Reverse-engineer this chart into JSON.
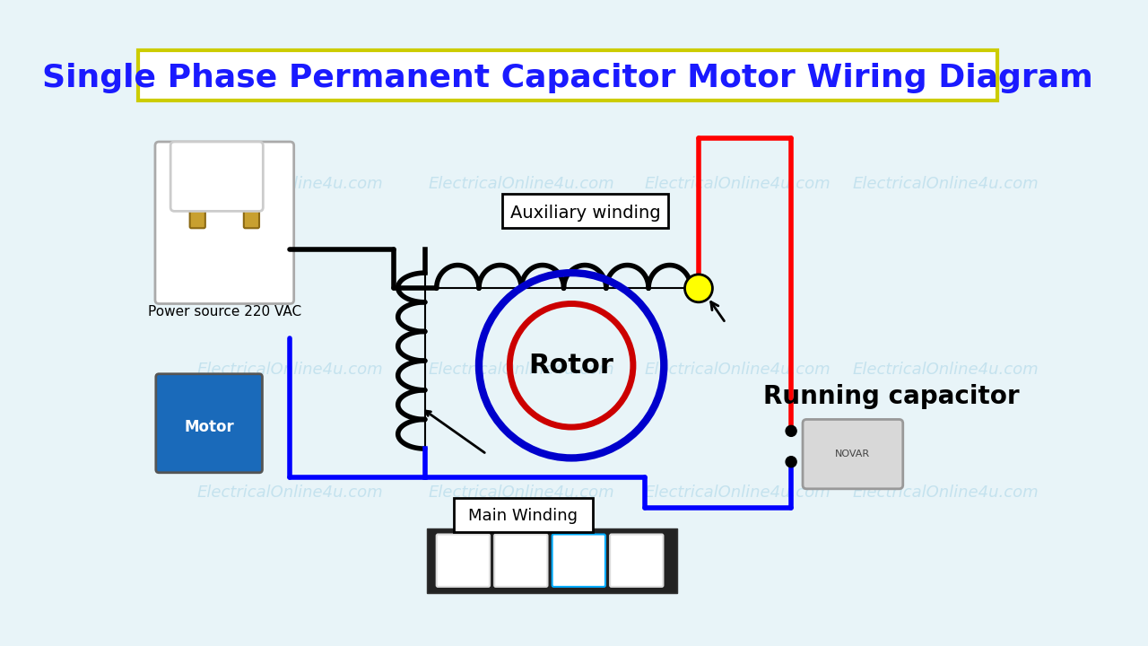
{
  "title": "Single Phase Permanent Capacitor Motor Wiring Diagram",
  "title_color": "#1a1aff",
  "title_bg": "#ffff00",
  "title_border": "#ffff00",
  "bg_color": "#e8f4f8",
  "watermark": "ElectricalOnline4u.com",
  "power_source_label": "Power source 220 VAC",
  "aux_winding_label": "Auxiliary winding",
  "main_winding_label": "Main Winding",
  "running_cap_label": "Running capacitor",
  "rotor_label": "Rotor",
  "lw_black": 4,
  "lw_blue": 4,
  "lw_red": 4,
  "rotor_outer_color": "#0000cc",
  "rotor_inner_color": "#cc0000"
}
